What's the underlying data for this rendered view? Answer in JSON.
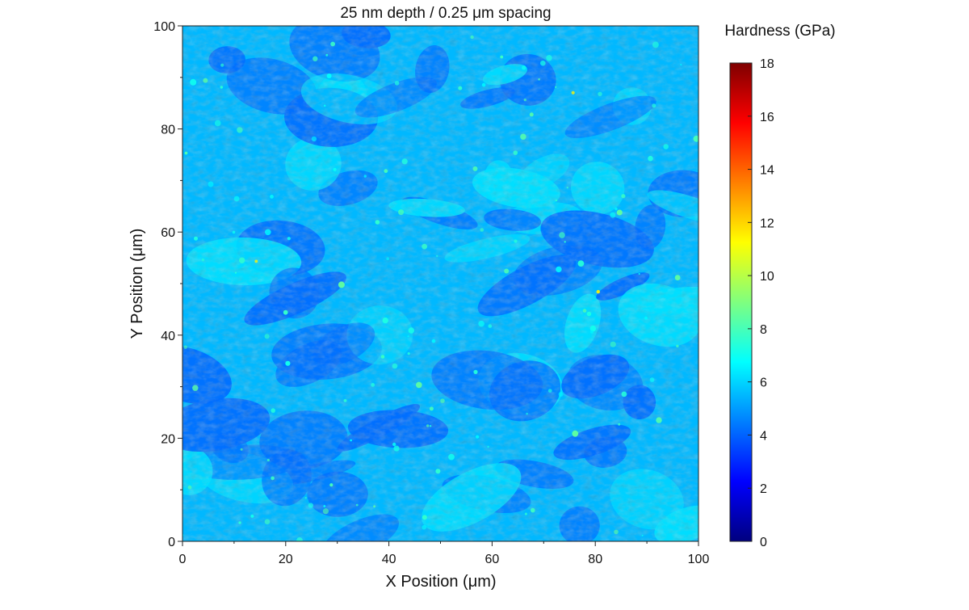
{
  "chart_data": {
    "type": "heatmap",
    "title": "25 nm depth / 0.25 μm spacing",
    "xlabel": "X Position (μm)",
    "ylabel": "Y Position (μm)",
    "xlim": [
      0,
      100
    ],
    "ylim": [
      0,
      100
    ],
    "x_ticks": [
      0,
      20,
      40,
      60,
      80,
      100
    ],
    "y_ticks": [
      0,
      20,
      40,
      60,
      80,
      100
    ],
    "x_minor_ticks": [
      10,
      30,
      50,
      70,
      90
    ],
    "y_minor_ticks": [
      10,
      30,
      50,
      70,
      90
    ],
    "colorbar": {
      "label": "Hardness (GPa)",
      "range": [
        0,
        18
      ],
      "ticks": [
        0,
        2,
        4,
        6,
        8,
        10,
        12,
        14,
        16,
        18
      ],
      "colormap": "jet"
    },
    "dominant_values": {
      "background_median": 5.5,
      "low_regions": 4.2,
      "high_spots": 8.5,
      "max_spot": 11.5
    },
    "grid": false,
    "legend": "colorbar-right"
  },
  "colors": {
    "jet_stops": [
      "#00007f",
      "#0000ff",
      "#007fff",
      "#00ffff",
      "#7fff7f",
      "#ffff00",
      "#ff7f00",
      "#ff0000",
      "#7f0000"
    ]
  }
}
